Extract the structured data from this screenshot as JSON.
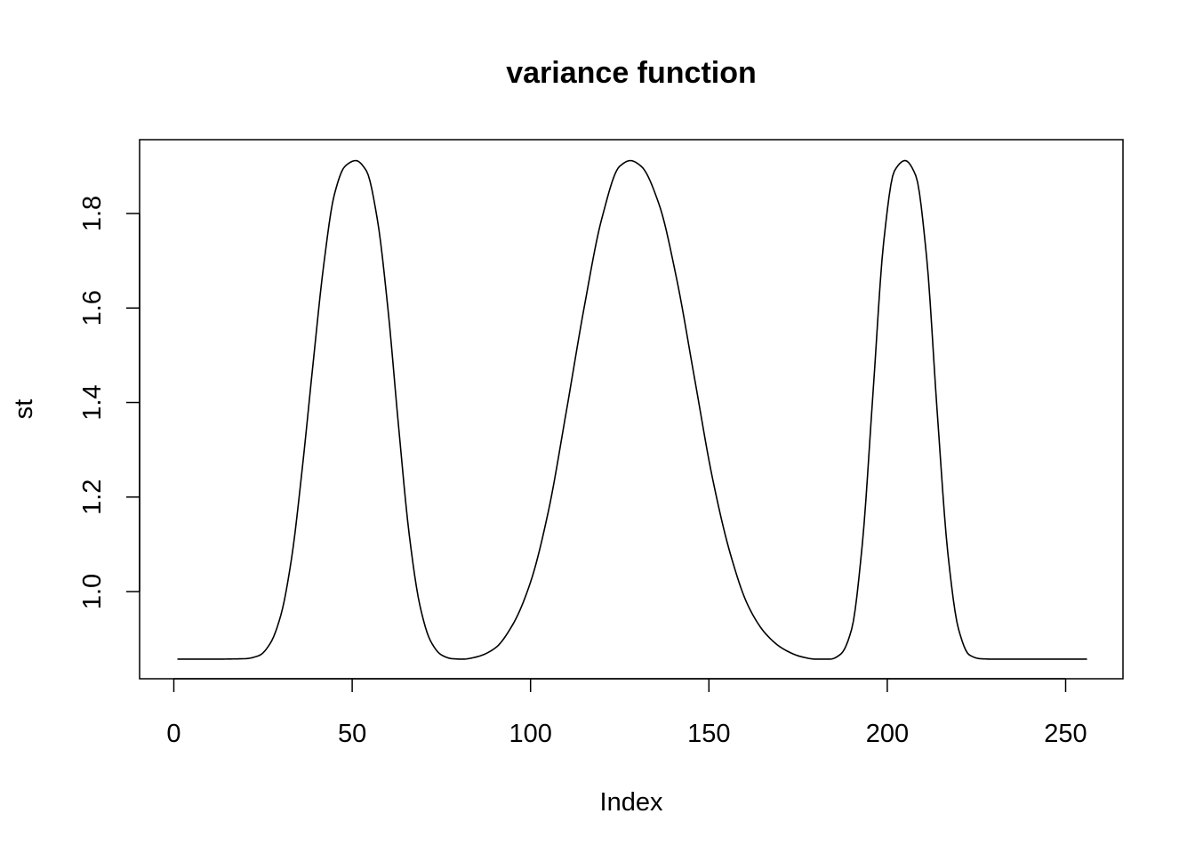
{
  "chart_data": {
    "type": "line",
    "title": "variance function",
    "xlabel": "Index",
    "ylabel": "st",
    "xlim": [
      1,
      256
    ],
    "ylim": [
      0.857,
      1.912
    ],
    "x_ticks": [
      0,
      50,
      100,
      150,
      200,
      250
    ],
    "y_ticks": [
      1.0,
      1.2,
      1.4,
      1.6,
      1.8
    ],
    "grid": false,
    "legend": "none",
    "line_color": "#000000",
    "series": [
      {
        "x": [
          1,
          10,
          20,
          24,
          27,
          30,
          33,
          36,
          39,
          42,
          45,
          48,
          51,
          54,
          57,
          60,
          63,
          66,
          69,
          72,
          75,
          78,
          81,
          85,
          90,
          95,
          100,
          105,
          110,
          115,
          120,
          125,
          128,
          131,
          136,
          141,
          146,
          151,
          156,
          161,
          166,
          171,
          176,
          180,
          184,
          187,
          190,
          193,
          196,
          199,
          202,
          205,
          208,
          211,
          214,
          217,
          220,
          223,
          226,
          230,
          240,
          256
        ],
        "y": [
          0.857,
          0.857,
          0.858,
          0.865,
          0.89,
          0.95,
          1.07,
          1.26,
          1.48,
          1.69,
          1.84,
          1.9,
          1.912,
          1.89,
          1.79,
          1.6,
          1.35,
          1.12,
          0.97,
          0.895,
          0.866,
          0.858,
          0.857,
          0.862,
          0.88,
          0.93,
          1.02,
          1.17,
          1.38,
          1.6,
          1.79,
          1.9,
          1.912,
          1.9,
          1.82,
          1.66,
          1.45,
          1.24,
          1.08,
          0.97,
          0.91,
          0.878,
          0.862,
          0.857,
          0.857,
          0.868,
          0.92,
          1.1,
          1.42,
          1.74,
          1.89,
          1.912,
          1.88,
          1.71,
          1.38,
          1.08,
          0.92,
          0.866,
          0.858,
          0.857,
          0.857,
          0.857
        ]
      }
    ]
  }
}
